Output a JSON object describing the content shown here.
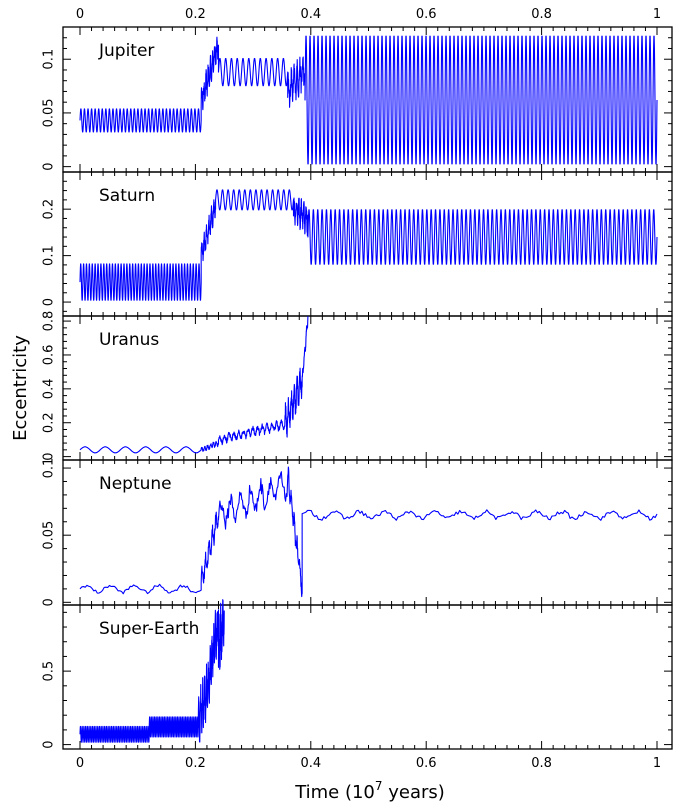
{
  "figure": {
    "xlabel_text": "Time  (10",
    "xlabel_exponent": "7",
    "xlabel_suffix": " years)",
    "ylabel": "Eccentricity",
    "line_color": "#0000ff"
  },
  "chart_data": {
    "type": "line",
    "x_axis": {
      "range": [
        0,
        1
      ],
      "ticks": [
        0,
        0.2,
        0.4,
        0.6,
        0.8,
        1
      ],
      "tick_labels": [
        "0",
        "0.2",
        "0.4",
        "0.6",
        "0.8",
        "1"
      ]
    },
    "panels": [
      {
        "name": "Jupiter",
        "ylim": [
          -0.005,
          0.13
        ],
        "y_ticks": [
          0,
          0.05,
          0.1
        ],
        "y_tick_labels": [
          "0",
          "0.05",
          "0.1"
        ],
        "segments": [
          {
            "t": [
              0.0,
              0.21
            ],
            "kind": "osc",
            "center": 0.043,
            "amp": 0.011,
            "cycles": 34
          },
          {
            "t": [
              0.21,
              0.24
            ],
            "kind": "noise",
            "from": 0.06,
            "to": 0.115,
            "amp": 0.015,
            "cycles": 8
          },
          {
            "t": [
              0.24,
              0.36
            ],
            "kind": "osc",
            "center": 0.088,
            "amp": 0.013,
            "cycles": 12
          },
          {
            "t": [
              0.36,
              0.39
            ],
            "kind": "noise",
            "from": 0.07,
            "to": 0.09,
            "amp": 0.02,
            "cycles": 6
          },
          {
            "t": [
              0.39,
              1.0
            ],
            "kind": "osc",
            "center": 0.062,
            "amp": 0.061,
            "cycles": 88
          }
        ]
      },
      {
        "name": "Saturn",
        "ylim": [
          -0.03,
          0.28
        ],
        "y_ticks": [
          0,
          0.1,
          0.2
        ],
        "y_tick_labels": [
          "0",
          "0.1",
          "0.2"
        ],
        "segments": [
          {
            "t": [
              0.0,
              0.21
            ],
            "kind": "osc",
            "center": 0.043,
            "amp": 0.04,
            "cycles": 42
          },
          {
            "t": [
              0.21,
              0.235
            ],
            "kind": "noise",
            "from": 0.1,
            "to": 0.21,
            "amp": 0.03,
            "cycles": 6
          },
          {
            "t": [
              0.235,
              0.37
            ],
            "kind": "osc",
            "center": 0.22,
            "amp": 0.022,
            "cycles": 14
          },
          {
            "t": [
              0.37,
              0.395
            ],
            "kind": "noise",
            "from": 0.2,
            "to": 0.18,
            "amp": 0.04,
            "cycles": 6
          },
          {
            "t": [
              0.395,
              1.0
            ],
            "kind": "osc",
            "center": 0.14,
            "amp": 0.06,
            "cycles": 80
          }
        ]
      },
      {
        "name": "Uranus",
        "ylim": [
          -0.02,
          0.83
        ],
        "y_ticks": [
          0,
          0.2,
          0.4,
          0.6,
          0.8
        ],
        "y_tick_labels": [
          "0",
          "0.2",
          "0.4",
          "0.6",
          "0.8"
        ],
        "segments": [
          {
            "t": [
              0.0,
              0.21
            ],
            "kind": "osc",
            "center": 0.04,
            "amp": 0.018,
            "cycles": 6
          },
          {
            "t": [
              0.21,
              0.24
            ],
            "kind": "noise",
            "from": 0.04,
            "to": 0.08,
            "amp": 0.02,
            "cycles": 6
          },
          {
            "t": [
              0.24,
              0.355
            ],
            "kind": "noise",
            "from": 0.1,
            "to": 0.19,
            "amp": 0.035,
            "cycles": 14
          },
          {
            "t": [
              0.355,
              0.385
            ],
            "kind": "noise",
            "from": 0.2,
            "to": 0.45,
            "amp": 0.12,
            "cycles": 6
          },
          {
            "t": [
              0.385,
              0.395
            ],
            "kind": "noise",
            "from": 0.45,
            "to": 0.82,
            "amp": 0.04,
            "cycles": 3
          }
        ]
      },
      {
        "name": "Neptune",
        "ylim": [
          -0.002,
          0.106
        ],
        "y_ticks": [
          0,
          0.05,
          0.1
        ],
        "y_tick_labels": [
          "0",
          "0.05",
          "0.1"
        ],
        "segments": [
          {
            "t": [
              0.0,
              0.21
            ],
            "kind": "osc",
            "center": 0.01,
            "amp": 0.0025,
            "cycles": 5,
            "fuzz": 0.0012
          },
          {
            "t": [
              0.21,
              0.24
            ],
            "kind": "noise",
            "from": 0.015,
            "to": 0.065,
            "amp": 0.01,
            "cycles": 5
          },
          {
            "t": [
              0.24,
              0.36
            ],
            "kind": "noise",
            "from": 0.065,
            "to": 0.088,
            "amp": 0.014,
            "cycles": 7
          },
          {
            "t": [
              0.36,
              0.385
            ],
            "kind": "noise",
            "from": 0.095,
            "to": 0.01,
            "amp": 0.01,
            "cycles": 5
          },
          {
            "t": [
              0.385,
              1.0
            ],
            "kind": "osc",
            "center": 0.065,
            "amp": 0.0025,
            "cycles": 14,
            "fuzz": 0.0015
          }
        ]
      },
      {
        "name": "Super-Earth",
        "ylim": [
          -0.03,
          0.95
        ],
        "y_ticks": [
          0,
          0.5
        ],
        "y_tick_labels": [
          "0",
          "0.5"
        ],
        "segments": [
          {
            "t": [
              0.0,
              0.12
            ],
            "kind": "osc",
            "center": 0.07,
            "amp": 0.055,
            "cycles": 40
          },
          {
            "t": [
              0.12,
              0.205
            ],
            "kind": "osc",
            "center": 0.12,
            "amp": 0.07,
            "cycles": 30
          },
          {
            "t": [
              0.205,
              0.225
            ],
            "kind": "noise",
            "from": 0.15,
            "to": 0.45,
            "amp": 0.2,
            "cycles": 6
          },
          {
            "t": [
              0.225,
              0.24
            ],
            "kind": "noise",
            "from": 0.5,
            "to": 0.85,
            "amp": 0.2,
            "cycles": 5
          },
          {
            "t": [
              0.24,
              0.25
            ],
            "kind": "noise",
            "from": 0.6,
            "to": 0.9,
            "amp": 0.3,
            "cycles": 3
          }
        ]
      }
    ]
  }
}
